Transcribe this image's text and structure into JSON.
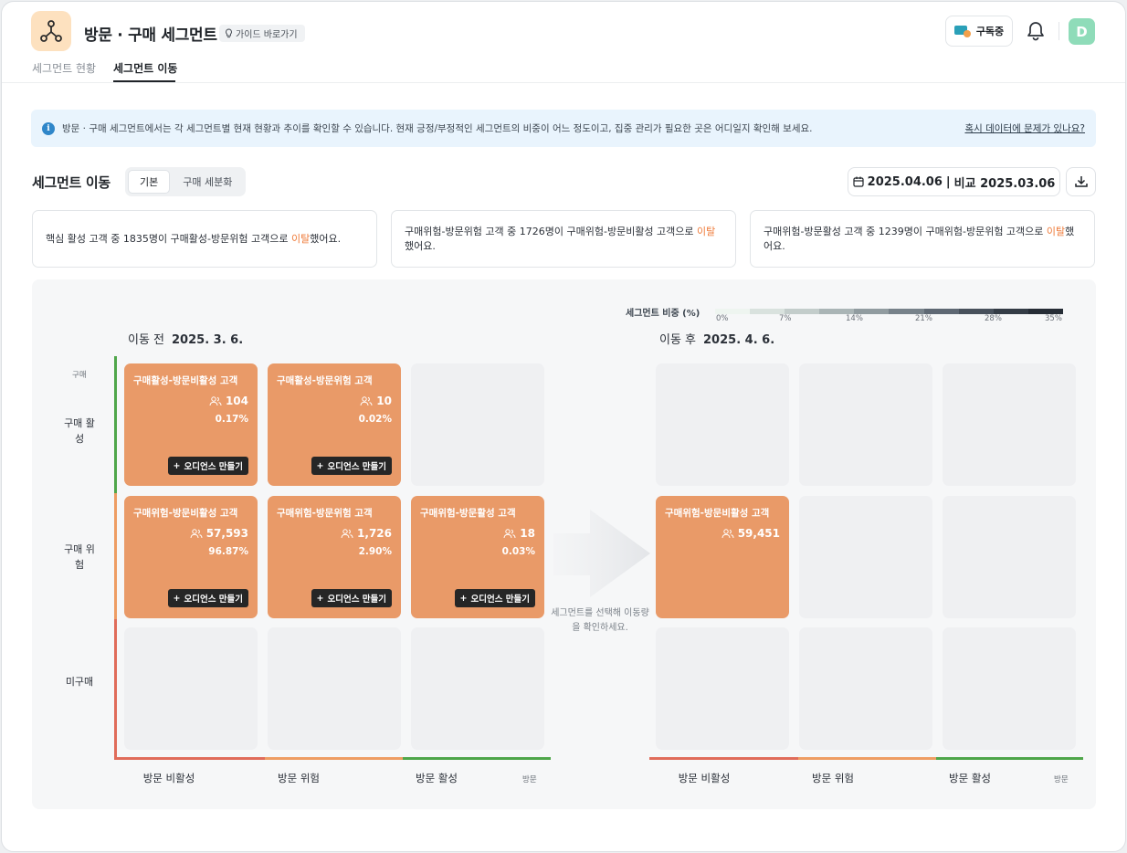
{
  "header": {
    "app_icon": "network-nodes-icon",
    "title": "방문 · 구매 세그먼트",
    "guide_label": "가이드 바로가기",
    "subscribe_label": "구독중",
    "avatar_letter": "D"
  },
  "tabs": [
    {
      "label": "세그먼트 현황",
      "active": false
    },
    {
      "label": "세그먼트 이동",
      "active": true
    }
  ],
  "banner": {
    "text": "방문 · 구매 세그먼트에서는 각 세그먼트별 현재 현황과 추이를 확인할 수 있습니다. 현재 긍정/부정적인 세그먼트의 비중이 어느 정도이고, 집중 관리가 필요한 곳은 어디일지 확인해 보세요.",
    "link": "혹시 데이터에 문제가 있나요?"
  },
  "section": {
    "title": "세그먼트 이동",
    "segmented": [
      "기본",
      "구매 세분화"
    ],
    "date": "2025.04.06",
    "date_sep": "|",
    "compare": "비교 2025.03.06"
  },
  "insights": [
    {
      "pre": "핵심 활성 고객 중 1835명이 구매활성-방문위험 고객으로 ",
      "hl": "이탈",
      "post": "했어요."
    },
    {
      "pre": "구매위험-방문위험 고객 중 1726명이 구매위험-방문비활성 고객으로 ",
      "hl": "이탈",
      "post": "했어요."
    },
    {
      "pre": "구매위험-방문활성 고객 중 1239명이 구매위험-방문위험 고객으로 ",
      "hl": "이탈",
      "post": "했어요."
    }
  ],
  "legend": {
    "title": "세그먼트 비중 (%)",
    "ticks": [
      "0%",
      "7%",
      "14%",
      "21%",
      "28%",
      "35%"
    ],
    "colors": [
      "#eef5f0",
      "#d9e2de",
      "#c3cdcb",
      "#aab5b6",
      "#919ca0",
      "#77828a",
      "#5e6873",
      "#48515c",
      "#343c46",
      "#262d36"
    ]
  },
  "before": {
    "label": "이동 전",
    "date": "2025. 3. 6."
  },
  "after": {
    "label": "이동 후",
    "date": "2025. 4. 6."
  },
  "axes": {
    "y_title": "구매",
    "y_rows": [
      "구매 활성",
      "구매 위험",
      "미구매"
    ],
    "x_cols": [
      "방문 비활성",
      "방문 위험",
      "방문 활성"
    ],
    "x_title": "방문",
    "colors": {
      "inactive": "#e06c5a",
      "risk": "#ee9d63",
      "active": "#4fa64a"
    }
  },
  "cards": {
    "before": [
      {
        "name": "구매활성-방문비활성 고객",
        "count": "104",
        "pct": "0.17%",
        "action": "오디언스 만들기"
      },
      {
        "name": "구매활성-방문위험 고객",
        "count": "10",
        "pct": "0.02%",
        "action": "오디언스 만들기"
      },
      {
        "name": "구매위험-방문비활성 고객",
        "count": "57,593",
        "pct": "96.87%",
        "action": "오디언스 만들기"
      },
      {
        "name": "구매위험-방문위험 고객",
        "count": "1,726",
        "pct": "2.90%",
        "action": "오디언스 만들기"
      },
      {
        "name": "구매위험-방문활성 고객",
        "count": "18",
        "pct": "0.03%",
        "action": "오디언스 만들기"
      }
    ],
    "after": [
      {
        "name": "구매위험-방문비활성 고객",
        "count": "59,451"
      }
    ]
  },
  "hint": "세그먼트를 선택해 이동량을 확인하세요."
}
